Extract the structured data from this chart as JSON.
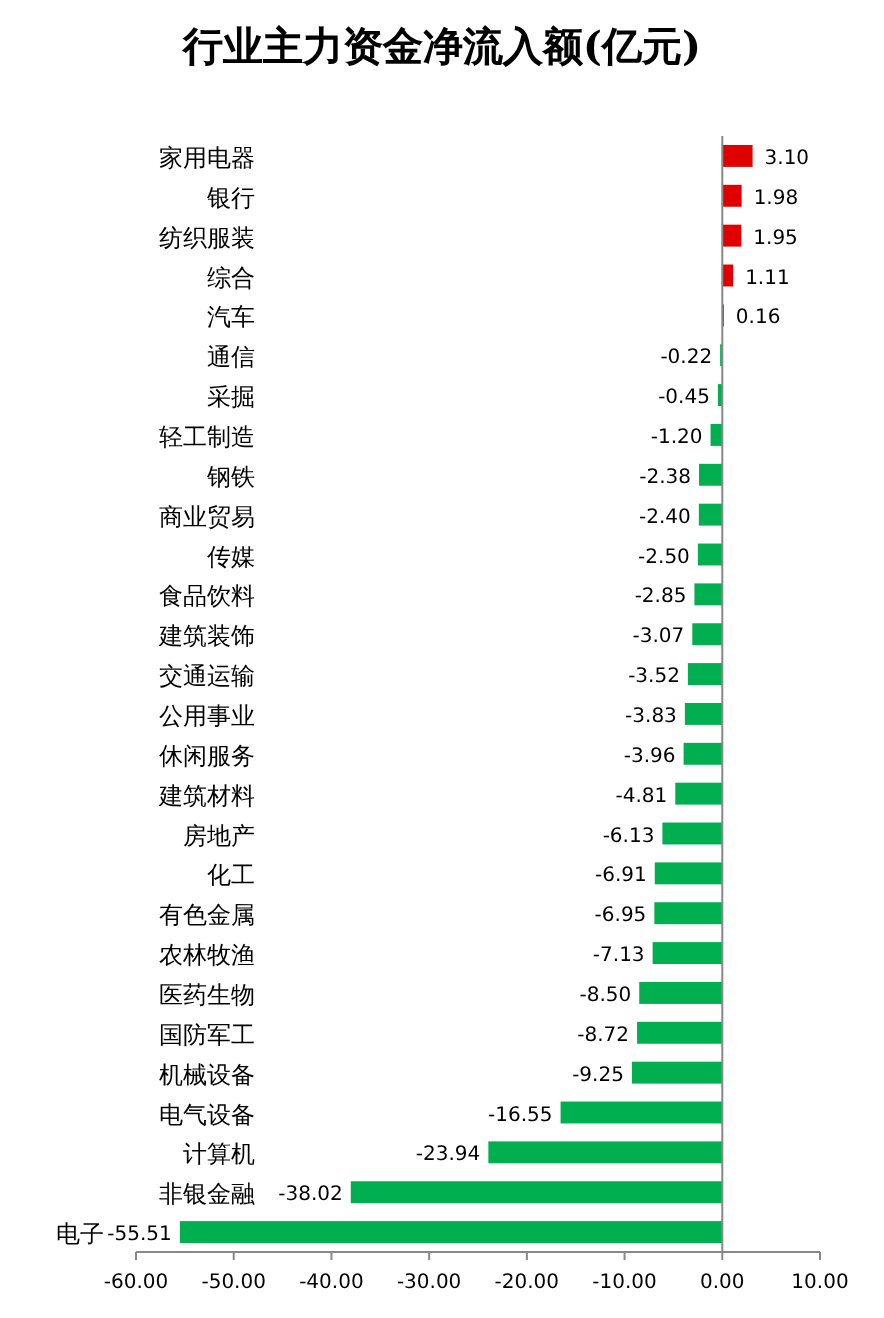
{
  "chart_data": {
    "type": "bar",
    "orientation": "horizontal",
    "title": "行业主力资金净流入额(亿元)",
    "categories": [
      "家用电器",
      "银行",
      "纺织服装",
      "综合",
      "汽车",
      "通信",
      "采掘",
      "轻工制造",
      "钢铁",
      "商业贸易",
      "传媒",
      "食品饮料",
      "建筑装饰",
      "交通运输",
      "公用事业",
      "休闲服务",
      "建筑材料",
      "房地产",
      "化工",
      "有色金属",
      "农林牧渔",
      "医药生物",
      "国防军工",
      "机械设备",
      "电气设备",
      "计算机",
      "非银金融",
      "电子"
    ],
    "values": [
      3.1,
      1.98,
      1.95,
      1.11,
      0.16,
      -0.22,
      -0.45,
      -1.2,
      -2.38,
      -2.4,
      -2.5,
      -2.85,
      -3.07,
      -3.52,
      -3.83,
      -3.96,
      -4.81,
      -6.13,
      -6.91,
      -6.95,
      -7.13,
      -8.5,
      -8.72,
      -9.25,
      -16.55,
      -23.94,
      -38.02,
      -55.51
    ],
    "colors": [
      "#e00000",
      "#e00000",
      "#e00000",
      "#e00000",
      "#e00000",
      "#00b050",
      "#00b050",
      "#00b050",
      "#00b050",
      "#00b050",
      "#00b050",
      "#00b050",
      "#00b050",
      "#00b050",
      "#00b050",
      "#00b050",
      "#00b050",
      "#00b050",
      "#00b050",
      "#00b050",
      "#00b050",
      "#00b050",
      "#00b050",
      "#00b050",
      "#00b050",
      "#00b050",
      "#00b050",
      "#00b050"
    ],
    "value_labels": [
      "3.10",
      "1.98",
      "1.95",
      "1.11",
      "0.16",
      "-0.22",
      "-0.45",
      "-1.20",
      "-2.38",
      "-2.40",
      "-2.50",
      "-2.85",
      "-3.07",
      "-3.52",
      "-3.83",
      "-3.96",
      "-4.81",
      "-6.13",
      "-6.91",
      "-6.95",
      "-7.13",
      "-8.50",
      "-8.72",
      "-9.25",
      "-16.55",
      "-23.94",
      "-38.02",
      "-55.51"
    ],
    "xlim": [
      -60,
      10
    ],
    "xticks": [
      {
        "value": -60,
        "label": "-60.00"
      },
      {
        "value": -50,
        "label": "-50.00"
      },
      {
        "value": -40,
        "label": "-40.00"
      },
      {
        "value": -30,
        "label": "-30.00"
      },
      {
        "value": -20,
        "label": "-20.00"
      },
      {
        "value": -10,
        "label": "-10.00"
      },
      {
        "value": 0,
        "label": "0.00"
      },
      {
        "value": 10,
        "label": "10.00"
      }
    ]
  }
}
